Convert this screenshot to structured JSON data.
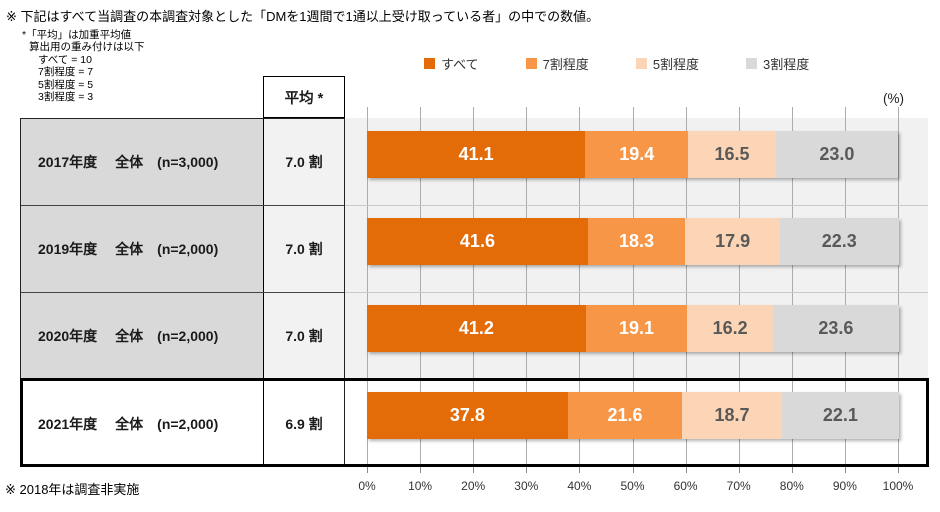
{
  "title": "※ 下記はすべて当調査の本調査対象とした「DMを1週間で1通以上受け取っている者」の中での数値。",
  "weight_note": {
    "lines": [
      "*「平均」は加重平均値",
      "算出用の重み付けは以下",
      "すべて = 10",
      "7割程度 = 7",
      "5割程度 = 5",
      "3割程度 = 3"
    ]
  },
  "avg_header": "平均 *",
  "percent_unit": "(%)",
  "footnote": "※ 2018年は調査非実施",
  "legend": [
    {
      "label": "すべて",
      "color": "#E36C09"
    },
    {
      "label": "7割程度",
      "color": "#F79646"
    },
    {
      "label": "5割程度",
      "color": "#FBD5B5"
    },
    {
      "label": "3割程度",
      "color": "#D9D9D9"
    }
  ],
  "colors": {
    "series": [
      "#E36C09",
      "#F79646",
      "#FBD5B5",
      "#D9D9D9"
    ],
    "value_text_on_dark": "#FFFFFF",
    "value_text_on_light": "#595959",
    "plot_background": "#F1F1F1",
    "table_label_background": "#D9D9D9",
    "table_average_background": "#F2F2F2"
  },
  "chart_data": {
    "type": "bar",
    "orientation": "horizontal",
    "stacked": true,
    "series_names": [
      "すべて",
      "7割程度",
      "5割程度",
      "3割程度"
    ],
    "x_ticks": [
      "0%",
      "10%",
      "20%",
      "30%",
      "40%",
      "50%",
      "60%",
      "70%",
      "80%",
      "90%",
      "100%"
    ],
    "xlim": [
      0,
      100
    ],
    "grid": true,
    "legend_position": "top",
    "rows": [
      {
        "year": "2017年度",
        "group": "全体",
        "n": "(n=3,000)",
        "average": "7.0 割",
        "values": [
          41.1,
          19.4,
          16.5,
          23.0
        ],
        "highlight": false
      },
      {
        "year": "2019年度",
        "group": "全体",
        "n": "(n=2,000)",
        "average": "7.0 割",
        "values": [
          41.6,
          18.3,
          17.9,
          22.3
        ],
        "highlight": false
      },
      {
        "year": "2020年度",
        "group": "全体",
        "n": "(n=2,000)",
        "average": "7.0 割",
        "values": [
          41.2,
          19.1,
          16.2,
          23.6
        ],
        "highlight": false
      },
      {
        "year": "2021年度",
        "group": "全体",
        "n": "(n=2,000)",
        "average": "6.9 割",
        "values": [
          37.8,
          21.6,
          18.7,
          22.1
        ],
        "highlight": true
      }
    ]
  }
}
